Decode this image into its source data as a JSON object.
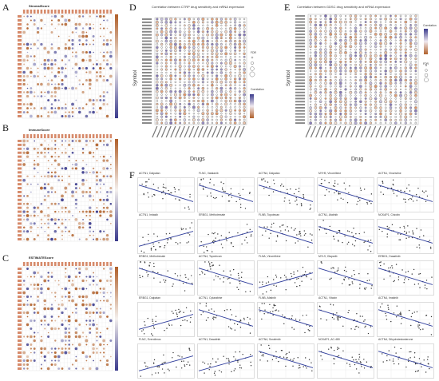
{
  "panels": {
    "A": {
      "letter": "A",
      "title": "StromalScore"
    },
    "B": {
      "letter": "B",
      "title": "ImmuneScore"
    },
    "C": {
      "letter": "C",
      "title": "ESTIMATEScore"
    },
    "D": {
      "letter": "D",
      "title": "Correlation between CTRP drug sensitivity and mRNA expression",
      "ylabel": "Symbol",
      "xlabel": "Drugs",
      "legend_fdr_title": "FDR",
      "legend_corr_title": "Correlation"
    },
    "E": {
      "letter": "E",
      "title": "Correlation between GDSC drug sensitivity and mRNA expression",
      "ylabel": "Symbol",
      "xlabel": "Drug",
      "legend_corr_title": "Correlation",
      "legend_fdr_title": "FDR"
    },
    "F": {
      "letter": "F"
    }
  },
  "colors": {
    "positive": "#b0602a",
    "negative": "#3a3a8c",
    "line": "#2f3d9c",
    "point": "#333333",
    "grid": "#e6e6e6"
  },
  "scatter_titles": [
    "ACTN1, Dalpatan",
    "FLNC, Vatalanib",
    "ACTN4, Dalpatan",
    "MYH9, Vinorelbine",
    "ACTN1, Vincristine",
    "ACTN1, Imtasib",
    "ERBG1, Methotrexate",
    "FLNB, Topotecan",
    "ACTN1, Afatinib",
    "NCKAP1, Crizotin",
    "ERBG1, Methotrexate",
    "ACTN4, Topotecan",
    "FLNA, Vinorelbine",
    "MYL9, Olaparib",
    "ERBG1, Dasatinib",
    "ERBG1, Dalpatan",
    "ACTN1, Cytarabine",
    "FLNB, Afatinib",
    "ACTN1, Vitaxin",
    "ACTN4, Imatinib",
    "FLNC, Everolimus",
    "ACTN1, Dasatinib",
    "ACTN4, Sorafenib",
    "NCKAP1, AC-480",
    "ACTN4, Dihydrotestosterone"
  ]
}
